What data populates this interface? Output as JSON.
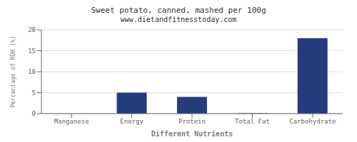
{
  "chart_data": {
    "type": "bar",
    "title": "Sweet potato, canned, mashed per 100g",
    "subtitle": "www.dietandfitnesstoday.com",
    "xlabel": "Different Nutrients",
    "ylabel": "Percentage of RDH (%)",
    "categories": [
      "Manganese",
      "Energy",
      "Protein",
      "Total Fat",
      "Carbohydrate"
    ],
    "values": [
      0.0,
      5.0,
      4.0,
      0.1,
      18.0
    ],
    "color": "#253d7f",
    "ylim": [
      0,
      20
    ],
    "yticks": [
      0,
      5,
      10,
      15,
      20
    ],
    "grid": true
  }
}
